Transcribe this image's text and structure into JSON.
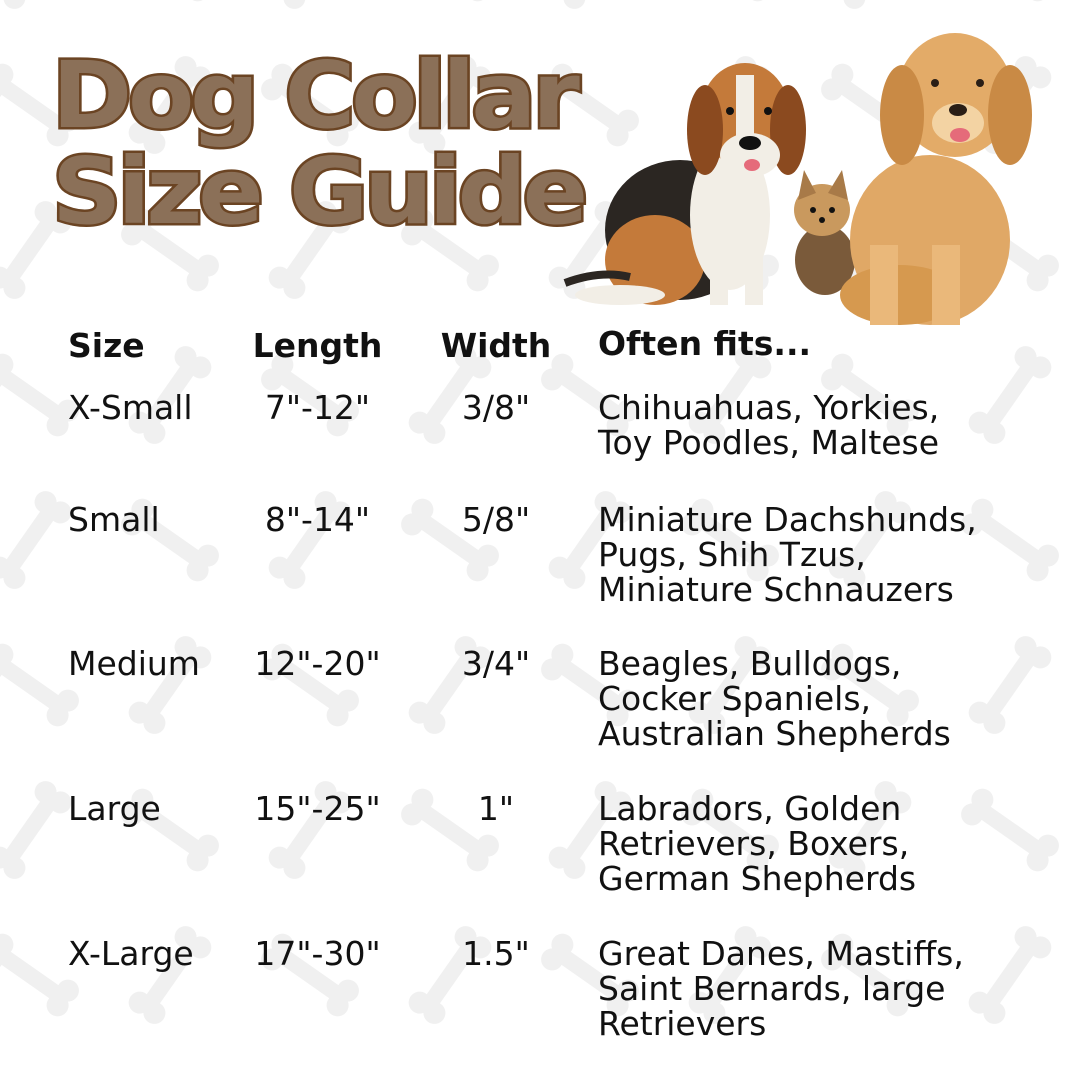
{
  "title": {
    "line1": "Dog Collar",
    "line2": "Size Guide"
  },
  "colors": {
    "title_fill": "#8b7058",
    "title_outline": "#6b4423",
    "bone_pattern": "#f0f0f0"
  },
  "illustration": [
    "beagle",
    "yorkie-puppy",
    "golden-retriever"
  ],
  "table": {
    "headers": {
      "size": "Size",
      "length": "Length",
      "width": "Width",
      "fits": "Often fits..."
    },
    "rows": [
      {
        "size": "X-Small",
        "length": "7\"-12\"",
        "width": "3/8\"",
        "fits": [
          "Chihuahuas, Yorkies,",
          "Toy Poodles, Maltese"
        ]
      },
      {
        "size": "Small",
        "length": "8\"-14\"",
        "width": "5/8\"",
        "fits": [
          "Miniature Dachshunds,",
          "Pugs, Shih Tzus,",
          "Miniature Schnauzers"
        ]
      },
      {
        "size": "Medium",
        "length": "12\"-20\"",
        "width": "3/4\"",
        "fits": [
          "Beagles, Bulldogs,",
          "Cocker Spaniels,",
          "Australian Shepherds"
        ]
      },
      {
        "size": "Large",
        "length": "15\"-25\"",
        "width": "1\"",
        "fits": [
          "Labradors, Golden",
          "Retrievers, Boxers,",
          "German Shepherds"
        ]
      },
      {
        "size": "X-Large",
        "length": "17\"-30\"",
        "width": "1.5\"",
        "fits": [
          "Great Danes, Mastiffs,",
          "Saint Bernards, large",
          "Retrievers"
        ]
      }
    ]
  }
}
